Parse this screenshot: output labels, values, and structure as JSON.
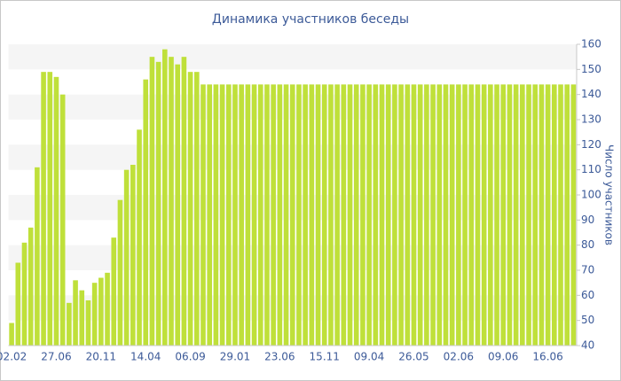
{
  "chart_data": {
    "type": "bar",
    "title": "Динамика участников беседы",
    "y_axis_label": "Число участников",
    "categories": [
      "02.02",
      null,
      null,
      null,
      null,
      null,
      null,
      "27.06",
      null,
      null,
      null,
      null,
      null,
      null,
      "20.11",
      null,
      null,
      null,
      null,
      null,
      null,
      "14.04",
      null,
      null,
      null,
      null,
      null,
      null,
      "06.09",
      null,
      null,
      null,
      null,
      null,
      null,
      "29.01",
      null,
      null,
      null,
      null,
      null,
      null,
      "23.06",
      null,
      null,
      null,
      null,
      null,
      null,
      "15.11",
      null,
      null,
      null,
      null,
      null,
      null,
      "09.04",
      null,
      null,
      null,
      null,
      null,
      null,
      "26.05",
      null,
      null,
      null,
      null,
      null,
      null,
      "02.06",
      null,
      null,
      null,
      null,
      null,
      null,
      "09.06",
      null,
      null,
      null,
      null,
      null,
      null,
      "16.06",
      null,
      null,
      null,
      null
    ],
    "values": [
      49,
      73,
      81,
      87,
      111,
      149,
      149,
      147,
      140,
      57,
      66,
      62,
      58,
      65,
      67,
      69,
      83,
      98,
      110,
      112,
      126,
      146,
      155,
      153,
      158,
      155,
      152,
      155,
      149,
      149,
      144,
      144,
      144,
      144,
      144,
      144,
      144,
      144,
      144,
      144,
      144,
      144,
      144,
      144,
      144,
      144,
      144,
      144,
      144,
      144,
      144,
      144,
      144,
      144,
      144,
      144,
      144,
      144,
      144,
      144,
      144,
      144,
      144,
      144,
      144,
      144,
      144,
      144,
      144,
      144,
      144,
      144,
      144,
      144,
      144,
      144,
      144,
      144,
      144,
      144,
      144,
      144,
      144,
      144,
      144,
      144,
      144,
      144,
      144
    ],
    "color": "#bfe03a",
    "ylim": [
      40,
      160
    ],
    "yticks": [
      40,
      50,
      60,
      70,
      80,
      90,
      100,
      110,
      120,
      130,
      140,
      150,
      160
    ],
    "grid": true
  }
}
